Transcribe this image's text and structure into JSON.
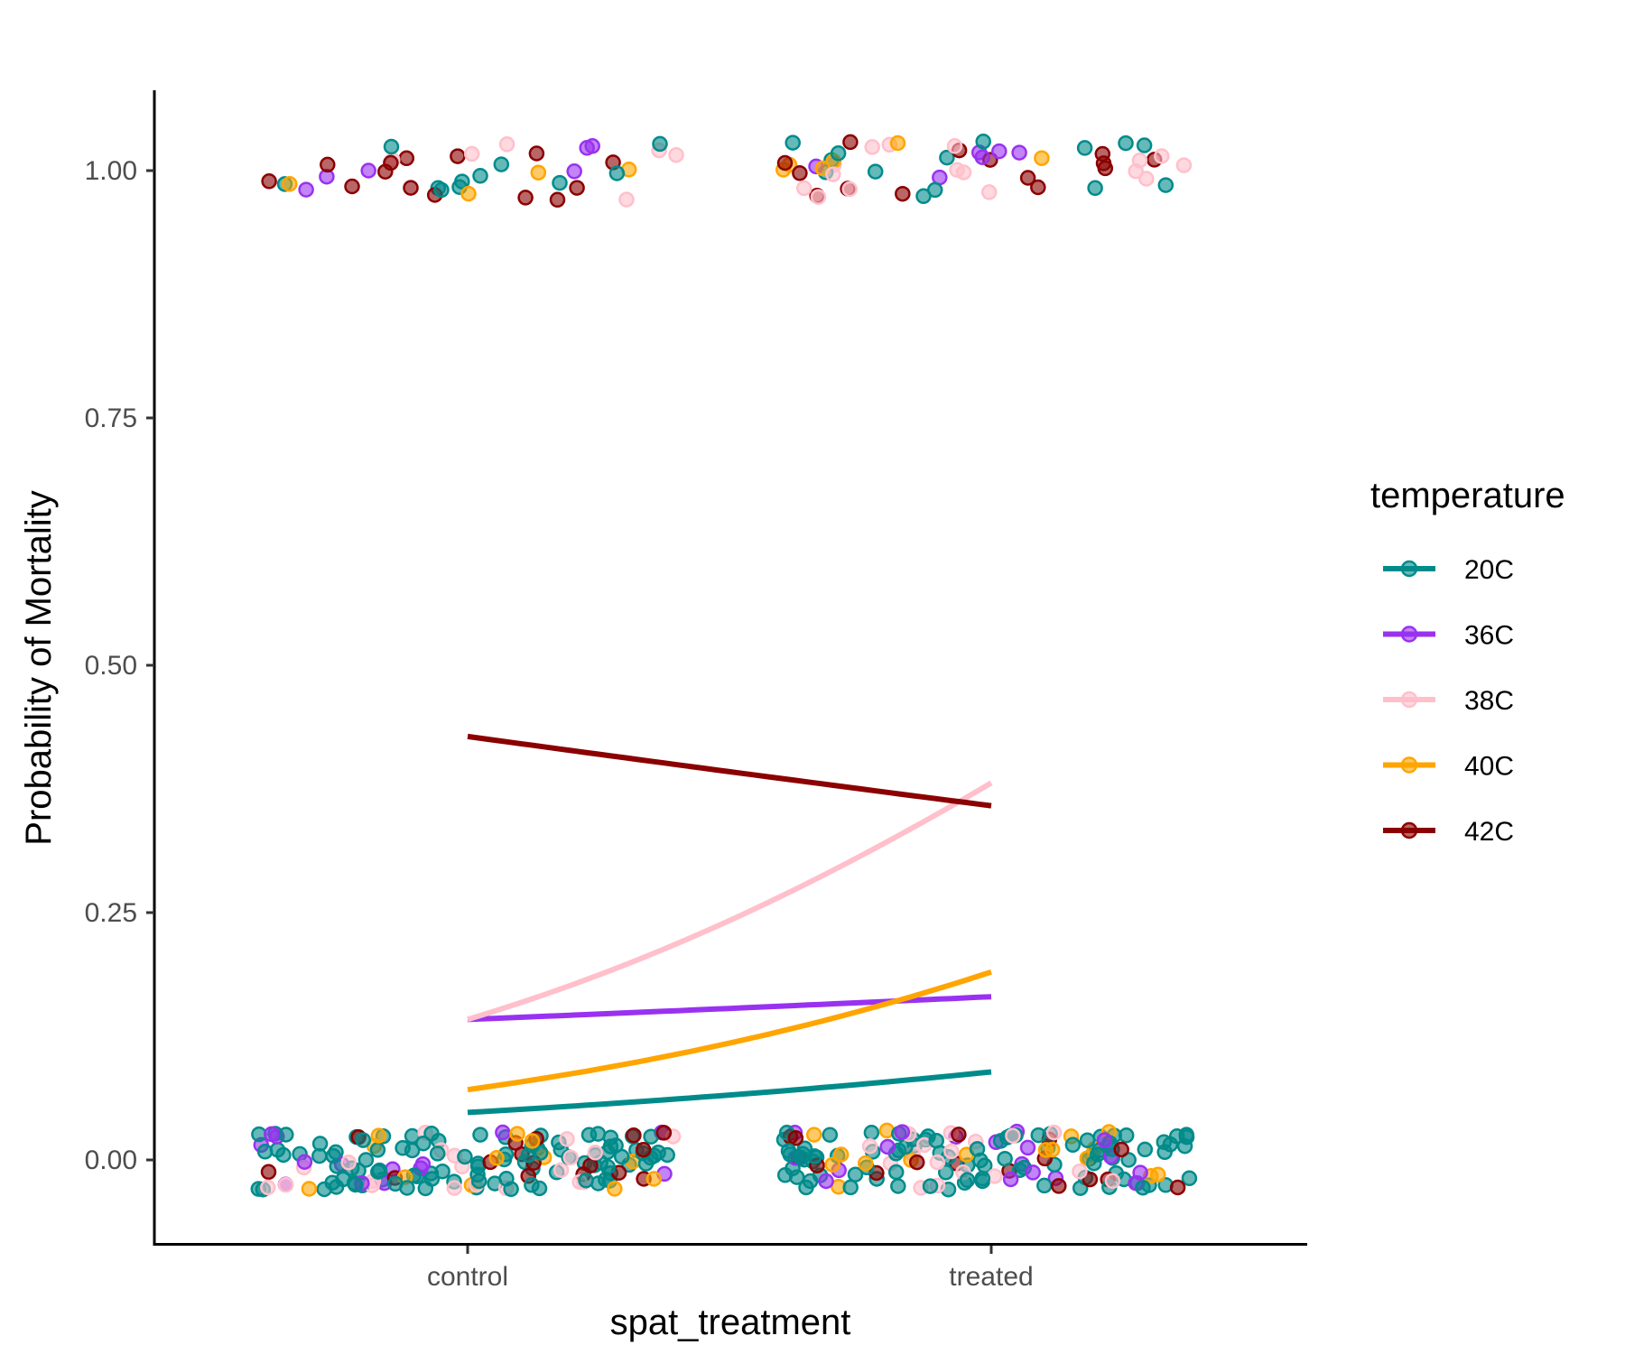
{
  "chart_data": {
    "type": "scatter",
    "title": "",
    "xlabel": "spat_treatment",
    "ylabel": "Probability of Mortality",
    "categories": [
      "control",
      "treated"
    ],
    "ylim": [
      -0.08,
      1.08
    ],
    "yticks": [
      0.0,
      0.25,
      0.5,
      0.75,
      1.0
    ],
    "ytick_labels": [
      "0.00",
      "0.25",
      "0.50",
      "0.75",
      "1.00"
    ],
    "grid": false,
    "legend": {
      "title": "temperature",
      "position": "right"
    },
    "series": [
      {
        "name": "20C",
        "color": "#008B8B",
        "fitted": [
          0.048,
          0.089
        ]
      },
      {
        "name": "36C",
        "color": "#9932F0",
        "fitted": [
          0.142,
          0.165
        ]
      },
      {
        "name": "38C",
        "color": "#FFC0CB",
        "fitted": [
          0.142,
          0.381
        ]
      },
      {
        "name": "40C",
        "color": "#FFA500",
        "fitted": [
          0.071,
          0.19
        ]
      },
      {
        "name": "42C",
        "color": "#8B0000",
        "fitted": [
          0.428,
          0.358
        ]
      }
    ],
    "observations": {
      "note": "jittered binary outcomes (0 = alive, 1 = dead)",
      "counts": {
        "control": {
          "20C": {
            "dead": 11,
            "alive": 100
          },
          "36C": {
            "dead": 6,
            "alive": 14
          },
          "38C": {
            "dead": 6,
            "alive": 20
          },
          "40C": {
            "dead": 4,
            "alive": 12
          },
          "42C": {
            "dead": 14,
            "alive": 16
          }
        },
        "treated": {
          "20C": {
            "dead": 14,
            "alive": 95
          },
          "36C": {
            "dead": 6,
            "alive": 18
          },
          "38C": {
            "dead": 16,
            "alive": 18
          },
          "40C": {
            "dead": 6,
            "alive": 16
          },
          "42C": {
            "dead": 14,
            "alive": 16
          }
        }
      }
    }
  }
}
